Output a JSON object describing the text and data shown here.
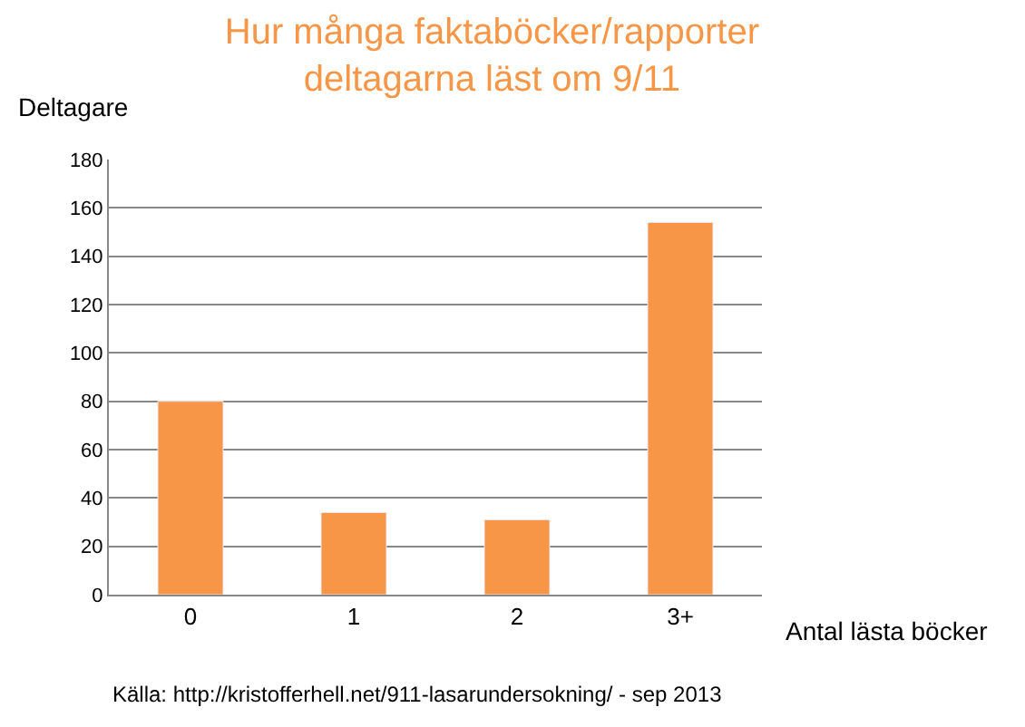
{
  "chart_data": {
    "type": "bar",
    "title": "Hur många faktaböcker/rapporter\ndeltagarna läst om 9/11",
    "xlabel": "Antal lästa böcker",
    "ylabel": "Deltagare",
    "categories": [
      "0",
      "1",
      "2",
      "3+"
    ],
    "values": [
      80,
      34,
      31,
      154
    ],
    "color": "#f79646",
    "ylim": [
      0,
      180
    ],
    "yticks": [
      0,
      20,
      40,
      60,
      80,
      100,
      120,
      140,
      160,
      180
    ],
    "grid": "y",
    "annotations": [
      "Källa: http://kristofferhell.net/911-lasarundersokning/ - sep 2013"
    ]
  }
}
